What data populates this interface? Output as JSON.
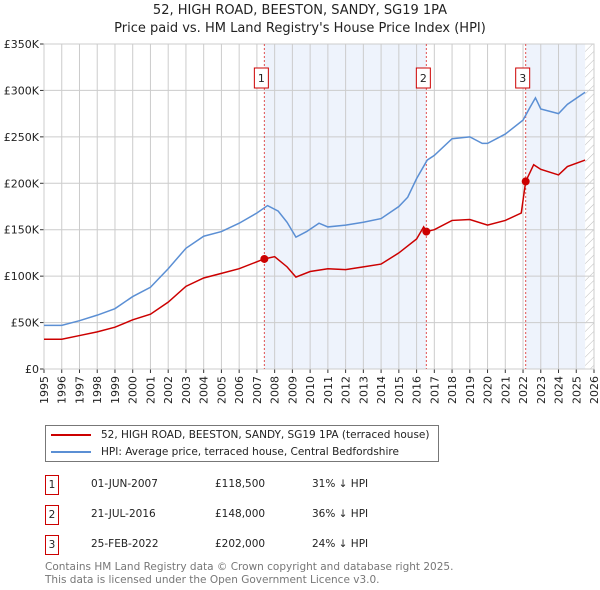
{
  "title": "52, HIGH ROAD, BEESTON, SANDY, SG19 1PA",
  "subtitle": "Price paid vs. HM Land Registry's House Price Index (HPI)",
  "chart_data": {
    "type": "line",
    "ylim": [
      0,
      350000
    ],
    "xlim": [
      1995,
      2026
    ],
    "y_ticks": [
      {
        "v": 0,
        "label": "£0"
      },
      {
        "v": 50000,
        "label": "£50K"
      },
      {
        "v": 100000,
        "label": "£100K"
      },
      {
        "v": 150000,
        "label": "£150K"
      },
      {
        "v": 200000,
        "label": "£200K"
      },
      {
        "v": 250000,
        "label": "£250K"
      },
      {
        "v": 300000,
        "label": "£300K"
      },
      {
        "v": 350000,
        "label": "£350K"
      }
    ],
    "x_ticks": [
      "1995",
      "1996",
      "1997",
      "1998",
      "1999",
      "2000",
      "2001",
      "2002",
      "2003",
      "2004",
      "2005",
      "2006",
      "2007",
      "2008",
      "2009",
      "2010",
      "2011",
      "2012",
      "2013",
      "2014",
      "2015",
      "2016",
      "2017",
      "2018",
      "2019",
      "2020",
      "2021",
      "2022",
      "2023",
      "2024",
      "2025",
      "2026"
    ],
    "series": [
      {
        "name": "52, HIGH ROAD, BEESTON, SANDY, SG19 1PA (terraced house)",
        "color": "#cc0000",
        "x": [
          1995,
          1996,
          1997,
          1998,
          1999,
          2000,
          2001,
          2002,
          2003,
          2004,
          2005,
          2006,
          2007.4,
          2008,
          2008.7,
          2009.2,
          2010,
          2011,
          2012,
          2013,
          2014,
          2015,
          2016,
          2016.4,
          2016.55,
          2017,
          2018,
          2019,
          2020,
          2021,
          2021.9,
          2022.15,
          2022.6,
          2023,
          2024,
          2024.5,
          2025.5
        ],
        "y": [
          32000,
          32000,
          36000,
          40000,
          45000,
          53000,
          59000,
          72000,
          89000,
          98000,
          103000,
          108000,
          118500,
          121000,
          110000,
          99000,
          105000,
          108000,
          107000,
          110000,
          113000,
          125000,
          140000,
          153000,
          148000,
          150000,
          160000,
          161000,
          155000,
          160000,
          168000,
          202000,
          220000,
          215000,
          209000,
          218000,
          225000
        ]
      },
      {
        "name": "HPI: Average price, terraced house, Central Bedfordshire",
        "color": "#5b8fd4",
        "x": [
          1995,
          1996,
          1997,
          1998,
          1999,
          2000,
          2001,
          2002,
          2003,
          2004,
          2005,
          2006,
          2007,
          2007.6,
          2008.2,
          2008.7,
          2009.2,
          2009.8,
          2010.5,
          2011,
          2012,
          2013,
          2014,
          2015,
          2015.5,
          2016,
          2016.6,
          2017,
          2018,
          2019,
          2019.7,
          2020,
          2021,
          2022,
          2022.4,
          2022.7,
          2023,
          2024,
          2024.5,
          2025.5
        ],
        "y": [
          47000,
          47000,
          52000,
          58000,
          65000,
          78000,
          88000,
          108000,
          130000,
          143000,
          148000,
          157000,
          168000,
          176000,
          170000,
          158000,
          142000,
          148000,
          157000,
          153000,
          155000,
          158000,
          162000,
          175000,
          185000,
          205000,
          225000,
          230000,
          248000,
          250000,
          243000,
          243000,
          253000,
          268000,
          282000,
          292000,
          280000,
          275000,
          285000,
          298000
        ]
      }
    ],
    "sales": [
      {
        "n": "1",
        "x": 2007.42
      },
      {
        "n": "2",
        "x": 2016.55
      },
      {
        "n": "3",
        "x": 2022.15
      }
    ]
  },
  "legend": {
    "property": "52, HIGH ROAD, BEESTON, SANDY, SG19 1PA (terraced house)",
    "hpi": "HPI: Average price, terraced house, Central Bedfordshire"
  },
  "transactions": [
    {
      "n": "1",
      "date": "01-JUN-2007",
      "price": "£118,500",
      "hpi": "31% ↓ HPI"
    },
    {
      "n": "2",
      "date": "21-JUL-2016",
      "price": "£148,000",
      "hpi": "36% ↓ HPI"
    },
    {
      "n": "3",
      "date": "25-FEB-2022",
      "price": "£202,000",
      "hpi": "24% ↓ HPI"
    }
  ],
  "footer": {
    "line1": "Contains HM Land Registry data © Crown copyright and database right 2025.",
    "line2": "This data is licensed under the Open Government Licence v3.0."
  }
}
